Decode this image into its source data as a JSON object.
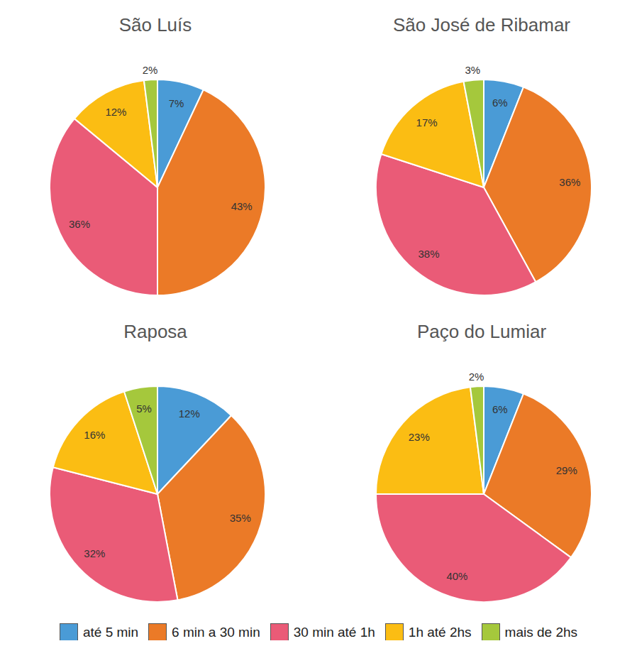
{
  "chart_data": [
    {
      "type": "pie",
      "title": "São Luís",
      "categories": [
        "até 5 min",
        "6 min a 30 min",
        "30 min até 1h",
        "1h até 2hs",
        "mais de 2hs"
      ],
      "values": [
        7,
        43,
        36,
        12,
        2
      ],
      "value_labels": [
        "7%",
        "43%",
        "36%",
        "12%",
        "2%"
      ],
      "colors": [
        "#4a9bd6",
        "#eb7a27",
        "#ea5b77",
        "#fbbd13",
        "#a5c83c"
      ],
      "data_labels": true,
      "legend": "bottom"
    },
    {
      "type": "pie",
      "title": "São José de Ribamar",
      "categories": [
        "até 5 min",
        "6 min a 30 min",
        "30 min até 1h",
        "1h até 2hs",
        "mais de 2hs"
      ],
      "values": [
        6,
        36,
        38,
        17,
        3
      ],
      "value_labels": [
        "6%",
        "36%",
        "38%",
        "17%",
        "3%"
      ],
      "colors": [
        "#4a9bd6",
        "#eb7a27",
        "#ea5b77",
        "#fbbd13",
        "#a5c83c"
      ],
      "data_labels": true,
      "legend": "bottom"
    },
    {
      "type": "pie",
      "title": "Raposa",
      "categories": [
        "até 5 min",
        "6 min a 30 min",
        "30 min até 1h",
        "1h até 2hs",
        "mais de 2hs"
      ],
      "values": [
        12,
        35,
        32,
        16,
        5
      ],
      "value_labels": [
        "12%",
        "35%",
        "32%",
        "16%",
        "5%"
      ],
      "colors": [
        "#4a9bd6",
        "#eb7a27",
        "#ea5b77",
        "#fbbd13",
        "#a5c83c"
      ],
      "data_labels": true,
      "legend": "bottom"
    },
    {
      "type": "pie",
      "title": "Paço do Lumiar",
      "categories": [
        "até 5 min",
        "6 min a 30 min",
        "30 min até 1h",
        "1h até 2hs",
        "mais de 2hs"
      ],
      "values": [
        6,
        29,
        40,
        23,
        2
      ],
      "value_labels": [
        "6%",
        "29%",
        "40%",
        "23%",
        "2%"
      ],
      "colors": [
        "#4a9bd6",
        "#eb7a27",
        "#ea5b77",
        "#fbbd13",
        "#a5c83c"
      ],
      "data_labels": true,
      "legend": "bottom"
    }
  ]
}
